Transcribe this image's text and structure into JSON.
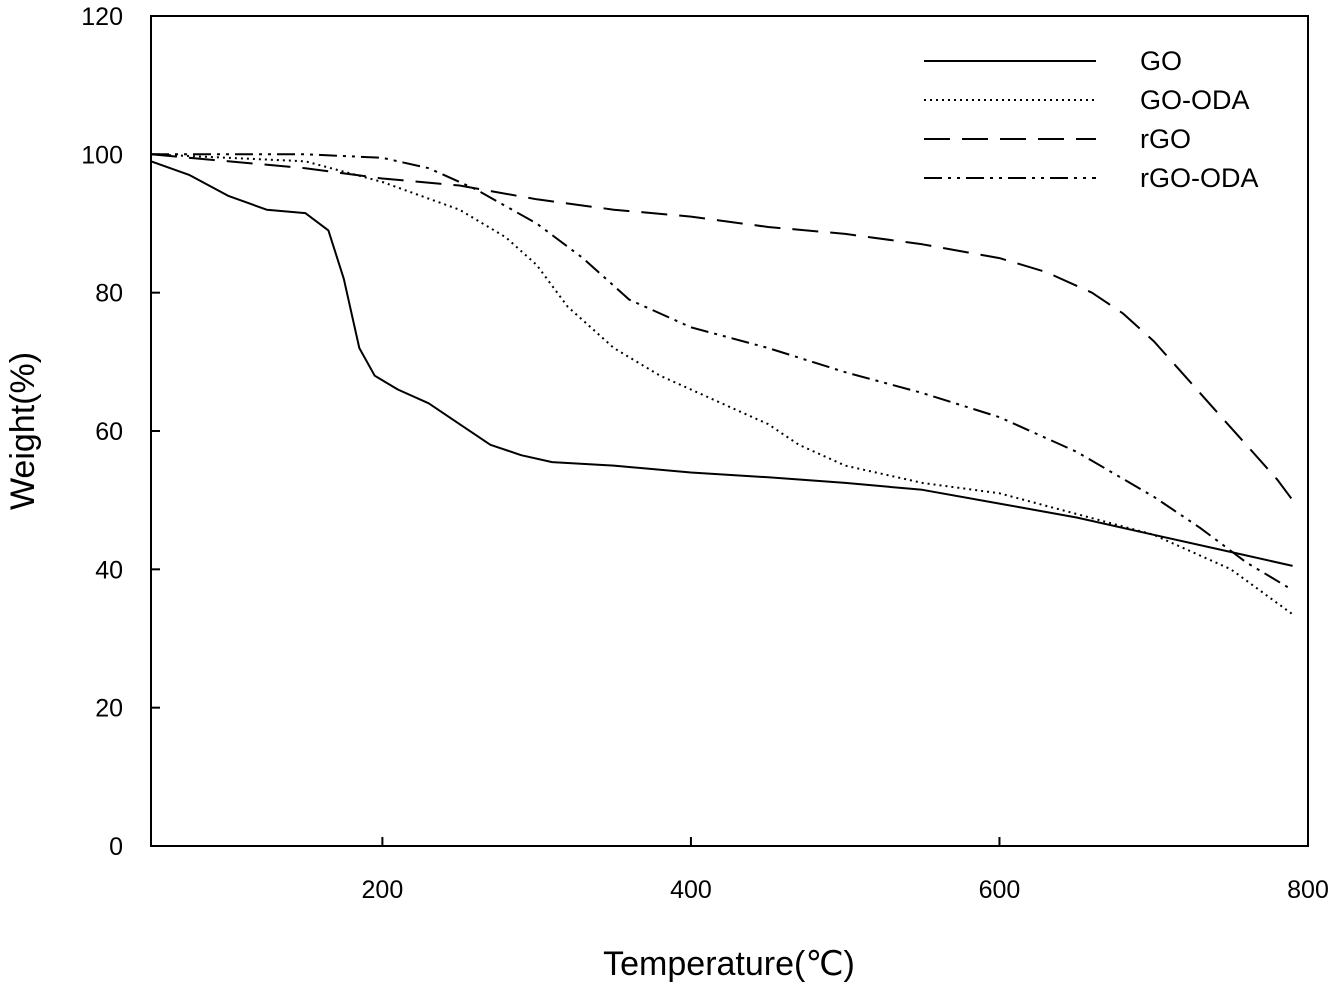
{
  "chart_data": {
    "type": "line",
    "xlabel": "Temperature(℃)",
    "ylabel": "Weight(%)",
    "xlim": [
      50,
      800
    ],
    "ylim": [
      0,
      120
    ],
    "xticks": [
      200,
      400,
      600,
      800
    ],
    "yticks": [
      0,
      20,
      40,
      60,
      80,
      100,
      120
    ],
    "grid": false,
    "legend_position": "top-right",
    "series": [
      {
        "name": "GO",
        "line_style": "solid",
        "x": [
          50,
          75,
          100,
          125,
          150,
          165,
          175,
          185,
          195,
          210,
          230,
          250,
          270,
          290,
          310,
          350,
          400,
          450,
          500,
          550,
          600,
          650,
          700,
          750,
          790
        ],
        "y": [
          99,
          97,
          94,
          92,
          91.5,
          89,
          82,
          72,
          68,
          66,
          64,
          61,
          58,
          56.5,
          55.5,
          55,
          54,
          53.3,
          52.5,
          51.5,
          49.5,
          47.5,
          45,
          42.5,
          40.5
        ]
      },
      {
        "name": "GO-ODA",
        "line_style": "dotted",
        "x": [
          50,
          100,
          150,
          200,
          250,
          280,
          300,
          320,
          350,
          380,
          400,
          430,
          450,
          470,
          500,
          550,
          600,
          650,
          700,
          750,
          790
        ],
        "y": [
          100,
          99.5,
          99,
          96,
          92,
          88,
          84,
          78,
          72,
          68,
          66,
          63,
          61,
          58,
          55,
          52.5,
          51,
          48,
          45,
          40,
          33.5
        ]
      },
      {
        "name": "rGO",
        "line_style": "dashed",
        "x": [
          50,
          100,
          150,
          200,
          250,
          300,
          350,
          400,
          450,
          500,
          550,
          600,
          630,
          660,
          680,
          700,
          720,
          740,
          760,
          780,
          790
        ],
        "y": [
          100,
          99,
          98,
          96.5,
          95.5,
          93.5,
          92,
          91,
          89.5,
          88.5,
          87,
          85,
          83,
          80,
          77,
          73,
          68,
          63,
          58,
          53,
          50
        ]
      },
      {
        "name": "rGO-ODA",
        "line_style": "dash-dot-dot",
        "x": [
          50,
          100,
          150,
          200,
          230,
          260,
          280,
          300,
          330,
          360,
          400,
          450,
          500,
          550,
          600,
          650,
          700,
          730,
          760,
          790
        ],
        "y": [
          100,
          100,
          100,
          99.5,
          98,
          95,
          92.5,
          90,
          85,
          79,
          75,
          72,
          68.5,
          65.5,
          62,
          57,
          50.5,
          46,
          41,
          37
        ]
      }
    ]
  }
}
